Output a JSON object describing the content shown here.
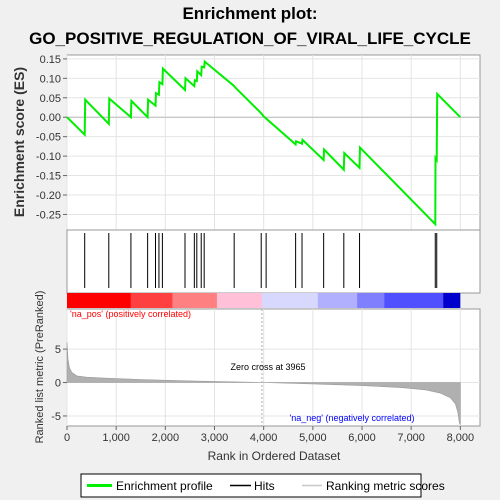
{
  "chart_data": {
    "type": "line",
    "title_line1": "Enrichment plot:",
    "title_line2": "GO_POSITIVE_REGULATION_OF_VIRAL_LIFE_CYCLE",
    "es_panel": {
      "ylabel": "Enrichment score (ES)",
      "ylim": [
        -0.29,
        0.16
      ],
      "yticks": [
        0.15,
        0.1,
        0.05,
        0.0,
        -0.05,
        -0.1,
        -0.15,
        -0.2,
        -0.25
      ],
      "ytick_labels": [
        "0.15",
        "0.10",
        "0.05",
        "0.00",
        "-0.05",
        "-0.10",
        "-0.15",
        "-0.20",
        "-0.25"
      ],
      "series": [
        {
          "name": "Enrichment profile",
          "color": "#00ee00",
          "x": [
            0,
            360,
            370,
            850,
            860,
            1300,
            1310,
            1640,
            1650,
            1800,
            1810,
            1870,
            1880,
            1940,
            1950,
            2400,
            2410,
            2590,
            2600,
            2640,
            2650,
            2730,
            2740,
            2790,
            2800,
            3400,
            3410,
            3950,
            4000,
            4650,
            4660,
            4780,
            4790,
            5220,
            5230,
            5630,
            5640,
            5950,
            5960,
            7490,
            7495,
            7520,
            7530,
            8000
          ],
          "y": [
            0.0,
            -0.045,
            0.045,
            -0.017,
            0.048,
            0.0,
            0.042,
            0.0,
            0.045,
            0.03,
            0.062,
            0.058,
            0.09,
            0.085,
            0.125,
            0.07,
            0.1,
            0.08,
            0.095,
            0.093,
            0.118,
            0.108,
            0.13,
            0.128,
            0.143,
            0.08,
            0.078,
            0.01,
            0.002,
            -0.07,
            -0.062,
            -0.068,
            -0.058,
            -0.11,
            -0.083,
            -0.135,
            -0.092,
            -0.13,
            -0.078,
            -0.275,
            -0.105,
            -0.11,
            0.06,
            0.0
          ]
        }
      ]
    },
    "hits_panel": {
      "label": "Hits",
      "hit_positions": [
        360,
        850,
        1300,
        1640,
        1800,
        1870,
        1940,
        2400,
        2590,
        2640,
        2730,
        2790,
        3400,
        3950,
        4050,
        4650,
        4780,
        5220,
        5630,
        5950,
        7490,
        7520
      ]
    },
    "metric_panel": {
      "ylabel": "Ranked list metric (PreRanked)",
      "ylim": [
        -6.5,
        11
      ],
      "yticks": [
        5,
        0,
        -5
      ],
      "ytick_labels": [
        "5",
        "0",
        "-5"
      ],
      "zero_cross_label": "Zero cross at 3965",
      "zero_cross": 3965,
      "pos_label": "'na_pos' (positively correlated)",
      "neg_label": "'na_neg' (negatively correlated)",
      "pos_color": "#ff0000",
      "neg_color": "#0000ff",
      "profile": {
        "x": [
          0,
          20,
          50,
          100,
          200,
          400,
          800,
          1500,
          2500,
          3965,
          5000,
          6000,
          6800,
          7300,
          7600,
          7800,
          7900,
          7950,
          7980,
          8000
        ],
        "y": [
          6.0,
          3.5,
          2.2,
          1.5,
          1.0,
          0.8,
          0.65,
          0.45,
          0.25,
          0.0,
          -0.2,
          -0.45,
          -0.75,
          -1.1,
          -1.6,
          -2.3,
          -3.2,
          -4.5,
          -6.0,
          -6.3
        ]
      },
      "metric_fill_color": "#b0b0b0"
    },
    "xaxis": {
      "label": "Rank in Ordered Dataset",
      "xlim": [
        0,
        8400
      ],
      "ticks": [
        0,
        1000,
        2000,
        3000,
        4000,
        5000,
        6000,
        7000,
        8000
      ],
      "tick_labels": [
        "0",
        "1,000",
        "2,000",
        "3,000",
        "4,000",
        "5,000",
        "6,000",
        "7,000",
        "8,000"
      ]
    },
    "legend": {
      "placement": "bottom",
      "items": [
        {
          "label": "Enrichment profile",
          "color": "#00ee00",
          "kind": "line-thick"
        },
        {
          "label": "Hits",
          "color": "#000000",
          "kind": "line-thin"
        },
        {
          "label": "Ranking metric scores",
          "color": "#c8c8c8",
          "kind": "line-thin"
        }
      ]
    },
    "heatbar": {
      "segments": [
        {
          "to": 1300,
          "color": "#ff0000"
        },
        {
          "to": 2150,
          "color": "#ff4040"
        },
        {
          "to": 3050,
          "color": "#ff8080"
        },
        {
          "to": 3965,
          "color": "#ffc0d8"
        },
        {
          "to": 5100,
          "color": "#d8d8ff"
        },
        {
          "to": 5900,
          "color": "#b0b0ff"
        },
        {
          "to": 6450,
          "color": "#8080ff"
        },
        {
          "to": 7650,
          "color": "#5050ff"
        },
        {
          "to": 8000,
          "color": "#0000cc"
        }
      ]
    },
    "grid": true
  }
}
